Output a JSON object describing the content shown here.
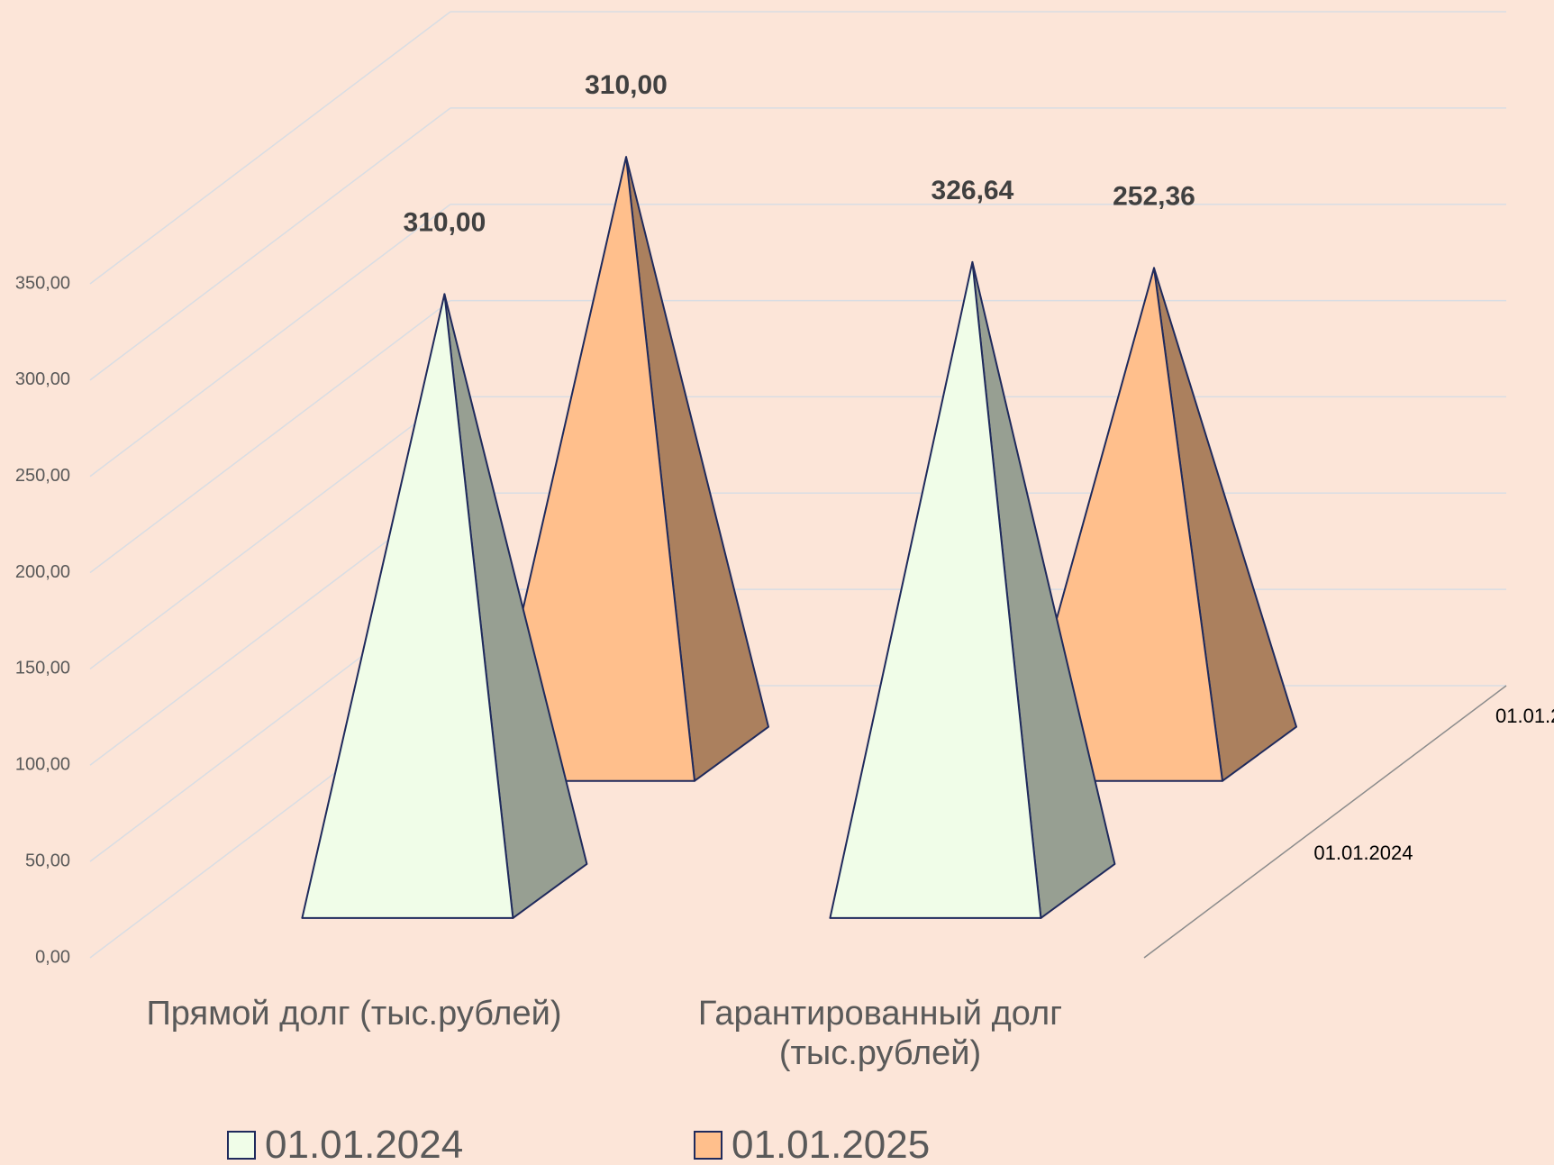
{
  "chart_data": {
    "type": "pyramid3d",
    "categories": [
      "Прямой долг (тыс.рублей)",
      "Гарантированный долг (тыс.рублей)"
    ],
    "series": [
      {
        "name": "01.01.2024",
        "color": "#f0fde8",
        "values": [
          310,
          326.64
        ],
        "value_labels": [
          "310,00",
          "326,64"
        ]
      },
      {
        "name": "01.01.2025",
        "color": "#ffbf8c",
        "values": [
          310,
          252.36
        ],
        "value_labels": [
          "310,00",
          "252,36"
        ]
      }
    ],
    "ylim": [
      0,
      350
    ],
    "yticks": [
      {
        "value": 0,
        "label": "0,00"
      },
      {
        "value": 50,
        "label": "50,00"
      },
      {
        "value": 100,
        "label": "100,00"
      },
      {
        "value": 150,
        "label": "150,00"
      },
      {
        "value": 200,
        "label": "200,00"
      },
      {
        "value": 250,
        "label": "250,00"
      },
      {
        "value": 300,
        "label": "300,00"
      },
      {
        "value": 350,
        "label": "350,00"
      }
    ],
    "grid": true,
    "legend": "bottom"
  }
}
